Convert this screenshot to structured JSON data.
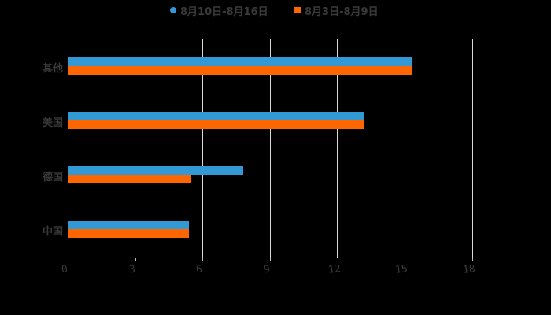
{
  "chart_data": {
    "type": "bar",
    "orientation": "horizontal",
    "title": "",
    "xlabel": "",
    "ylabel": "",
    "categories": [
      "其他",
      "美国",
      "德国",
      "中国"
    ],
    "series": [
      {
        "name": "8月10日-8月16日",
        "color": "#3399d4",
        "marker": "circle",
        "values": [
          15.3,
          13.2,
          7.8,
          5.4
        ]
      },
      {
        "name": "8月3日-8月9日",
        "color": "#ff6600",
        "marker": "square",
        "values": [
          15.3,
          13.2,
          5.5,
          5.4
        ]
      }
    ],
    "xlim": [
      0,
      18
    ],
    "xticks": [
      "0",
      "3",
      "6",
      "9",
      "12",
      "15",
      "18"
    ],
    "grid": true,
    "legend_position": "top"
  },
  "legend": {
    "items": [
      {
        "label": "8月10日-8月16日",
        "color": "#3399d4"
      },
      {
        "label": "8月3日-8月9日",
        "color": "#ff6600"
      }
    ]
  },
  "colors": {
    "background": "#000000",
    "gridline": "#d9d9d9",
    "text": "#3a3a3a"
  }
}
